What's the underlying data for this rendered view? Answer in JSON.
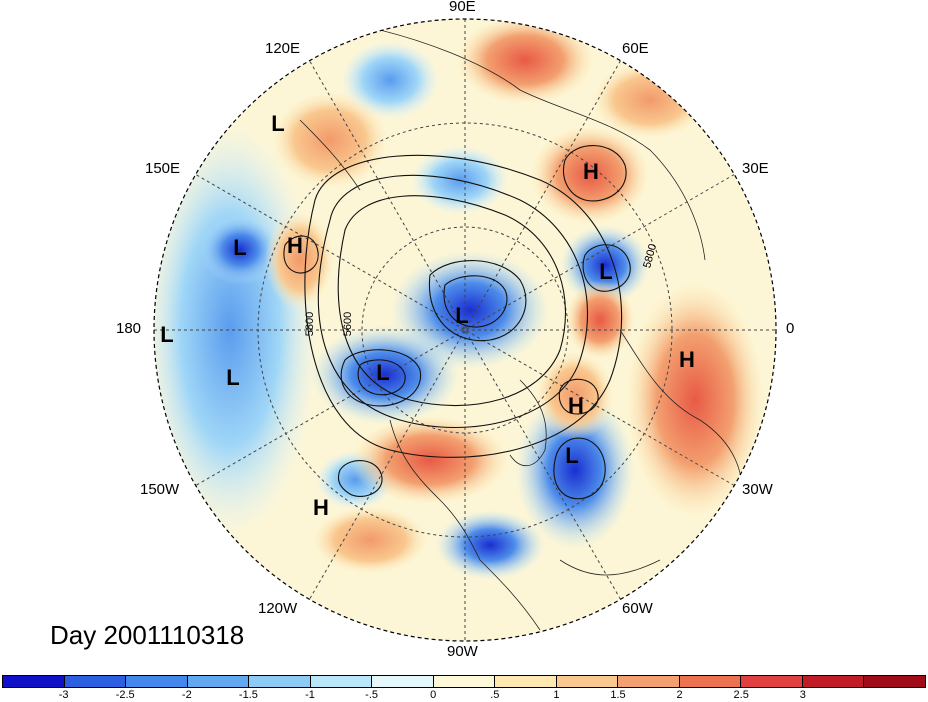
{
  "title": "Day 2001110318",
  "longitude_labels": {
    "lon_90e": "90E",
    "lon_60e": "60E",
    "lon_30e": "30E",
    "lon_0": "0",
    "lon_30w": "30W",
    "lon_60w": "60W",
    "lon_90w": "90W",
    "lon_120w": "120W",
    "lon_150w": "150W",
    "lon_180": "180",
    "lon_150e": "150E",
    "lon_120e": "120E"
  },
  "pressure_centers": [
    {
      "name": "low-1",
      "text": "L"
    },
    {
      "name": "low-2",
      "text": "L"
    },
    {
      "name": "low-3",
      "text": "L"
    },
    {
      "name": "low-4",
      "text": "L"
    },
    {
      "name": "low-5",
      "text": "L"
    },
    {
      "name": "low-6",
      "text": "L"
    },
    {
      "name": "low-7",
      "text": "L"
    },
    {
      "name": "low-8",
      "text": "L"
    },
    {
      "name": "high-1",
      "text": "H"
    },
    {
      "name": "high-2",
      "text": "H"
    },
    {
      "name": "high-3",
      "text": "H"
    },
    {
      "name": "high-4",
      "text": "H"
    },
    {
      "name": "high-5",
      "text": "H"
    }
  ],
  "contour_labels": [
    "5800",
    "5600",
    "5800"
  ],
  "colorbar": {
    "colors": [
      "#1010c8",
      "#2a5fe0",
      "#4287ea",
      "#62a8f0",
      "#8ccbf5",
      "#b9e7fa",
      "#e4f7fb",
      "#fdf9d8",
      "#fde9b0",
      "#f9c88f",
      "#f3a070",
      "#ec7250",
      "#e04040",
      "#c01c25",
      "#a00b18"
    ],
    "ticks": [
      "-3",
      "-2.5",
      "-2",
      "-1.5",
      "-1",
      "-.5",
      "0",
      ".5",
      "1",
      "1.5",
      "2",
      "2.5",
      "3"
    ]
  }
}
